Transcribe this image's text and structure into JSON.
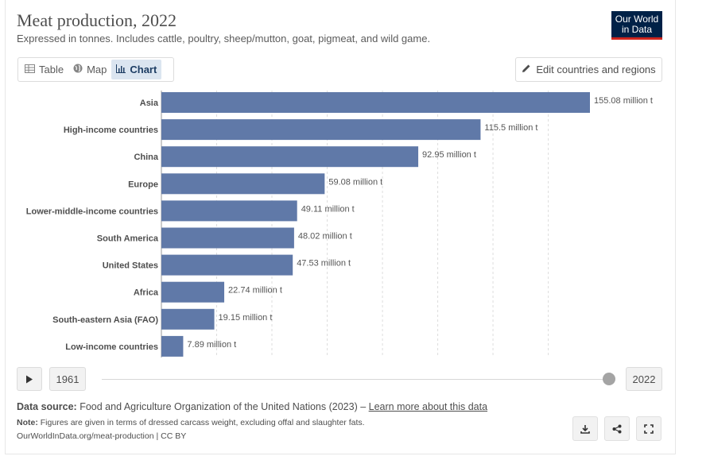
{
  "header": {
    "title": "Meat production, 2022",
    "subtitle": "Expressed in tonnes. Includes cattle, poultry, sheep/mutton, goat, pigmeat, and wild game.",
    "logo_line1": "Our World",
    "logo_line2": "in Data"
  },
  "tabs": [
    {
      "label": "Table",
      "icon": "table-icon"
    },
    {
      "label": "Map",
      "icon": "globe-icon"
    },
    {
      "label": "Chart",
      "icon": "chart-icon"
    }
  ],
  "edit_button": "Edit countries and regions",
  "chart_data": {
    "type": "bar",
    "orientation": "horizontal",
    "title": "Meat production, 2022",
    "unit": "million t",
    "categories": [
      "Asia",
      "High-income countries",
      "China",
      "Europe",
      "Lower-middle-income countries",
      "South America",
      "United States",
      "Africa",
      "South-eastern Asia (FAO)",
      "Low-income countries"
    ],
    "values": [
      155.08,
      115.5,
      92.95,
      59.08,
      49.11,
      48.02,
      47.53,
      22.74,
      19.15,
      7.89
    ],
    "value_labels": [
      "155.08 million t",
      "115.5 million t",
      "92.95 million t",
      "59.08 million t",
      "49.11 million t",
      "48.02 million t",
      "47.53 million t",
      "22.74 million t",
      "19.15 million t",
      "7.89 million t"
    ],
    "xlim": [
      0,
      155.08
    ],
    "gridlines": [
      0,
      20,
      40,
      60,
      80,
      100,
      120,
      140
    ],
    "bar_color": "#6079a8"
  },
  "timeline": {
    "start_year": "1961",
    "end_year": "2022",
    "position": 1.0
  },
  "footer": {
    "source_label": "Data source:",
    "source_text": "Food and Agriculture Organization of the United Nations (2023) – ",
    "source_link": "Learn more about this data",
    "note_label": "Note:",
    "note_text": "Figures are given in terms of dressed carcass weight, excluding offal and slaughter fats.",
    "license": "OurWorldInData.org/meat-production | CC BY"
  }
}
